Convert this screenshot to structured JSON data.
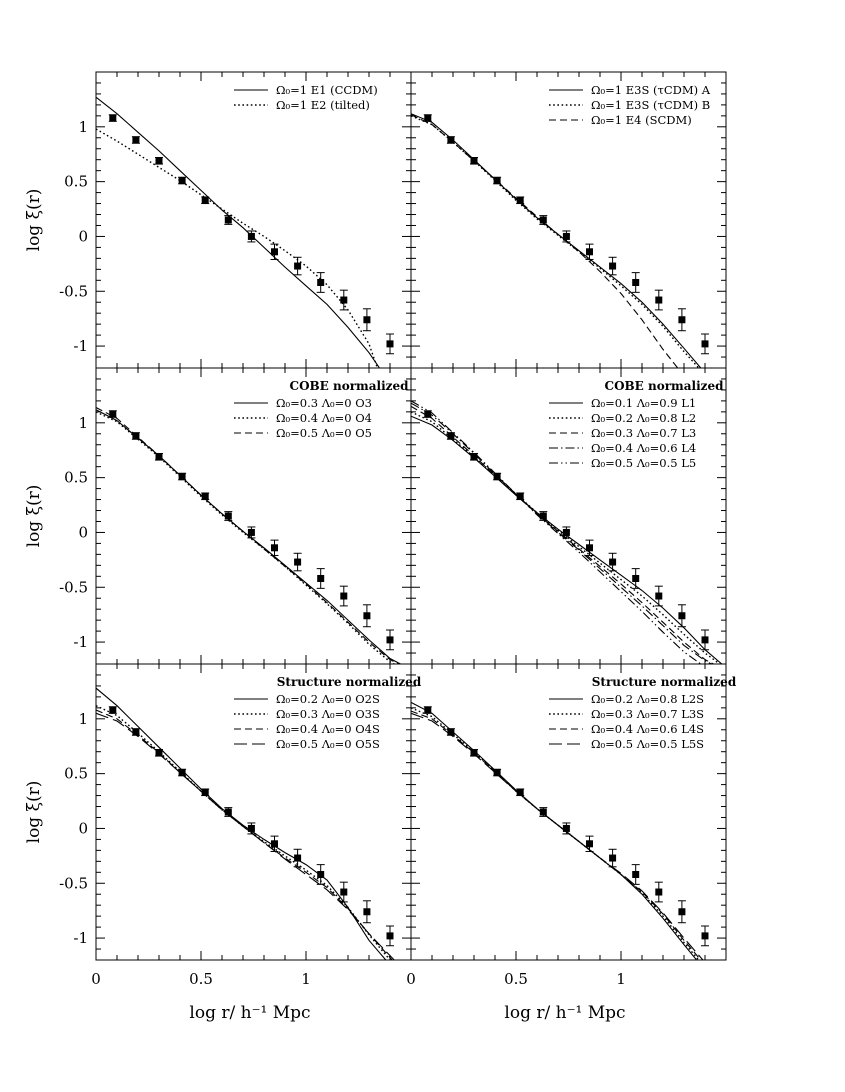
{
  "figure": {
    "x_tick_labels": [
      "0",
      "0.5",
      "1"
    ],
    "y_tick_labels": [
      "1",
      "0.5",
      "0",
      "-0.5",
      "-1"
    ],
    "x_axis_title": "log r/ h⁻¹ Mpc",
    "y_axis_title": "log ξ(r)"
  },
  "observed_points": {
    "x": [
      0.08,
      0.19,
      0.3,
      0.41,
      0.52,
      0.63,
      0.74,
      0.85,
      0.96,
      1.07,
      1.18,
      1.29,
      1.4
    ],
    "y": [
      1.08,
      0.88,
      0.69,
      0.51,
      0.33,
      0.15,
      0.0,
      -0.14,
      -0.27,
      -0.42,
      -0.58,
      -0.76,
      -0.98
    ],
    "err": [
      0.03,
      0.03,
      0.03,
      0.03,
      0.03,
      0.04,
      0.05,
      0.07,
      0.08,
      0.09,
      0.09,
      0.1,
      0.09
    ]
  },
  "chart_data": [
    {
      "type": "line",
      "panel": "top-left",
      "heading": "",
      "legend": [
        "Ω₀=1 E1 (CCDM)",
        "Ω₀=1 E2 (tilted)"
      ],
      "series": [
        {
          "style": "solid",
          "x": [
            0,
            0.1,
            0.2,
            0.3,
            0.4,
            0.5,
            0.6,
            0.7,
            0.8,
            0.9,
            1.0,
            1.1,
            1.2,
            1.3,
            1.35
          ],
          "y": [
            1.27,
            1.12,
            0.95,
            0.78,
            0.6,
            0.42,
            0.24,
            0.08,
            -0.1,
            -0.28,
            -0.45,
            -0.62,
            -0.83,
            -1.06,
            -1.2
          ]
        },
        {
          "style": "dotted",
          "x": [
            0,
            0.1,
            0.2,
            0.3,
            0.4,
            0.5,
            0.6,
            0.7,
            0.8,
            0.9,
            1.0,
            1.1,
            1.2,
            1.3,
            1.34
          ],
          "y": [
            0.98,
            0.87,
            0.75,
            0.63,
            0.51,
            0.38,
            0.25,
            0.12,
            0.0,
            -0.13,
            -0.27,
            -0.44,
            -0.67,
            -0.98,
            -1.2
          ]
        }
      ]
    },
    {
      "type": "line",
      "panel": "top-right",
      "heading": "",
      "legend": [
        "Ω₀=1 E3S (τCDM) A",
        "Ω₀=1 E3S (τCDM) B",
        "Ω₀=1 E4  (SCDM)"
      ],
      "series": [
        {
          "style": "solid",
          "x": [
            0,
            0.1,
            0.2,
            0.3,
            0.4,
            0.5,
            0.6,
            0.7,
            0.8,
            0.9,
            1.0,
            1.1,
            1.2,
            1.3,
            1.38
          ],
          "y": [
            1.12,
            1.04,
            0.88,
            0.7,
            0.52,
            0.34,
            0.17,
            0.02,
            -0.13,
            -0.28,
            -0.43,
            -0.6,
            -0.8,
            -1.02,
            -1.2
          ]
        },
        {
          "style": "dotted",
          "x": [
            0,
            0.1,
            0.2,
            0.3,
            0.4,
            0.5,
            0.6,
            0.7,
            0.8,
            0.9,
            1.0,
            1.1,
            1.2,
            1.3,
            1.37
          ],
          "y": [
            1.1,
            1.02,
            0.86,
            0.69,
            0.51,
            0.33,
            0.16,
            0.01,
            -0.14,
            -0.29,
            -0.45,
            -0.62,
            -0.82,
            -1.05,
            -1.2
          ]
        },
        {
          "style": "dashed",
          "x": [
            0,
            0.1,
            0.2,
            0.3,
            0.4,
            0.5,
            0.6,
            0.7,
            0.8,
            0.9,
            1.0,
            1.1,
            1.2,
            1.27
          ],
          "y": [
            1.11,
            1.02,
            0.86,
            0.69,
            0.52,
            0.35,
            0.18,
            0.02,
            -0.14,
            -0.32,
            -0.52,
            -0.76,
            -1.03,
            -1.2
          ]
        }
      ]
    },
    {
      "type": "line",
      "panel": "middle-left",
      "heading": "COBE normalized",
      "legend": [
        "Ω₀=0.3 Λ₀=0 O3",
        "Ω₀=0.4 Λ₀=0 O4",
        "Ω₀=0.5 Λ₀=0 O5"
      ],
      "series": [
        {
          "style": "solid",
          "x": [
            0,
            0.1,
            0.2,
            0.3,
            0.4,
            0.5,
            0.6,
            0.7,
            0.8,
            0.9,
            1.0,
            1.1,
            1.2,
            1.3,
            1.4,
            1.45
          ],
          "y": [
            1.12,
            1.02,
            0.86,
            0.7,
            0.52,
            0.34,
            0.17,
            0.01,
            -0.14,
            -0.3,
            -0.46,
            -0.62,
            -0.8,
            -0.98,
            -1.15,
            -1.2
          ]
        },
        {
          "style": "dotted",
          "x": [
            0,
            0.1,
            0.2,
            0.3,
            0.4,
            0.5,
            0.6,
            0.7,
            0.8,
            0.9,
            1.0,
            1.1,
            1.2,
            1.3,
            1.4,
            1.42
          ],
          "y": [
            1.1,
            1.01,
            0.85,
            0.69,
            0.51,
            0.33,
            0.16,
            0.0,
            -0.15,
            -0.31,
            -0.48,
            -0.65,
            -0.83,
            -1.02,
            -1.18,
            -1.2
          ]
        },
        {
          "style": "dashed",
          "x": [
            0,
            0.1,
            0.2,
            0.3,
            0.4,
            0.5,
            0.6,
            0.7,
            0.8,
            0.9,
            1.0,
            1.1,
            1.2,
            1.3,
            1.4,
            1.44
          ],
          "y": [
            1.14,
            1.04,
            0.87,
            0.7,
            0.52,
            0.34,
            0.17,
            0.01,
            -0.15,
            -0.31,
            -0.47,
            -0.64,
            -0.82,
            -1.0,
            -1.16,
            -1.2
          ]
        }
      ]
    },
    {
      "type": "line",
      "panel": "middle-right",
      "heading": "COBE normalized",
      "legend": [
        "Ω₀=0.1 Λ₀=0.9 L1",
        "Ω₀=0.2 Λ₀=0.8 L2",
        "Ω₀=0.3 Λ₀=0.7 L3",
        "Ω₀=0.4 Λ₀=0.6 L4",
        "Ω₀=0.5 Λ₀=0.5 L5"
      ],
      "series": [
        {
          "style": "solid",
          "x": [
            0,
            0.1,
            0.2,
            0.3,
            0.4,
            0.5,
            0.6,
            0.7,
            0.8,
            0.9,
            1.0,
            1.1,
            1.2,
            1.3,
            1.4,
            1.48
          ],
          "y": [
            1.06,
            0.98,
            0.84,
            0.68,
            0.51,
            0.34,
            0.18,
            0.03,
            -0.11,
            -0.25,
            -0.39,
            -0.53,
            -0.69,
            -0.87,
            -1.07,
            -1.2
          ]
        },
        {
          "style": "dotted",
          "x": [
            0,
            0.1,
            0.2,
            0.3,
            0.4,
            0.5,
            0.6,
            0.7,
            0.8,
            0.9,
            1.0,
            1.1,
            1.2,
            1.3,
            1.4,
            1.47
          ],
          "y": [
            1.1,
            1.01,
            0.85,
            0.69,
            0.52,
            0.35,
            0.18,
            0.02,
            -0.13,
            -0.28,
            -0.43,
            -0.58,
            -0.75,
            -0.93,
            -1.1,
            -1.2
          ]
        },
        {
          "style": "dashed",
          "x": [
            0,
            0.1,
            0.2,
            0.3,
            0.4,
            0.5,
            0.6,
            0.7,
            0.8,
            0.9,
            1.0,
            1.1,
            1.2,
            1.3,
            1.4,
            1.44
          ],
          "y": [
            1.15,
            1.04,
            0.87,
            0.7,
            0.52,
            0.34,
            0.17,
            0.01,
            -0.15,
            -0.31,
            -0.47,
            -0.64,
            -0.82,
            -1.0,
            -1.16,
            -1.2
          ]
        },
        {
          "style": "dotdash",
          "x": [
            0,
            0.1,
            0.2,
            0.3,
            0.4,
            0.5,
            0.6,
            0.7,
            0.8,
            0.9,
            1.0,
            1.1,
            1.2,
            1.3,
            1.4,
            1.43
          ],
          "y": [
            1.18,
            1.07,
            0.9,
            0.72,
            0.53,
            0.35,
            0.17,
            0.0,
            -0.16,
            -0.33,
            -0.5,
            -0.67,
            -0.85,
            -1.03,
            -1.17,
            -1.2
          ]
        },
        {
          "style": "dashdotdot",
          "x": [
            0,
            0.1,
            0.2,
            0.3,
            0.4,
            0.5,
            0.6,
            0.7,
            0.8,
            0.9,
            1.0,
            1.1,
            1.2,
            1.3,
            1.38
          ],
          "y": [
            1.2,
            1.09,
            0.91,
            0.73,
            0.54,
            0.35,
            0.16,
            -0.01,
            -0.18,
            -0.36,
            -0.54,
            -0.72,
            -0.91,
            -1.09,
            -1.2
          ]
        }
      ]
    },
    {
      "type": "line",
      "panel": "bottom-left",
      "heading": "Structure normalized",
      "legend": [
        "Ω₀=0.2 Λ₀=0 O2S",
        "Ω₀=0.3 Λ₀=0 O3S",
        "Ω₀=0.4 Λ₀=0 O4S",
        "Ω₀=0.5 Λ₀=0 O5S"
      ],
      "series": [
        {
          "style": "solid",
          "x": [
            0,
            0.1,
            0.2,
            0.3,
            0.4,
            0.5,
            0.6,
            0.7,
            0.8,
            0.9,
            1.0,
            1.1,
            1.2,
            1.3,
            1.38
          ],
          "y": [
            1.28,
            1.12,
            0.93,
            0.74,
            0.55,
            0.36,
            0.18,
            0.03,
            -0.1,
            -0.22,
            -0.33,
            -0.47,
            -0.72,
            -1.02,
            -1.2
          ]
        },
        {
          "style": "dotted",
          "x": [
            0,
            0.1,
            0.2,
            0.3,
            0.4,
            0.5,
            0.6,
            0.7,
            0.8,
            0.9,
            1.0,
            1.1,
            1.2,
            1.3,
            1.4
          ],
          "y": [
            1.12,
            1.03,
            0.87,
            0.7,
            0.52,
            0.34,
            0.17,
            0.02,
            -0.12,
            -0.25,
            -0.38,
            -0.52,
            -0.72,
            -0.97,
            -1.2
          ]
        },
        {
          "style": "dashed",
          "x": [
            0,
            0.1,
            0.2,
            0.3,
            0.4,
            0.5,
            0.6,
            0.7,
            0.8,
            0.9,
            1.0,
            1.1,
            1.2,
            1.3,
            1.41
          ],
          "y": [
            1.08,
            1.0,
            0.85,
            0.69,
            0.51,
            0.34,
            0.17,
            0.02,
            -0.13,
            -0.27,
            -0.4,
            -0.54,
            -0.73,
            -0.96,
            -1.2
          ]
        },
        {
          "style": "longdash",
          "x": [
            0,
            0.1,
            0.2,
            0.3,
            0.4,
            0.5,
            0.6,
            0.7,
            0.8,
            0.9,
            1.0,
            1.1,
            1.2,
            1.3,
            1.42
          ],
          "y": [
            1.05,
            0.98,
            0.84,
            0.68,
            0.51,
            0.34,
            0.17,
            0.02,
            -0.13,
            -0.28,
            -0.42,
            -0.56,
            -0.74,
            -0.96,
            -1.2
          ]
        }
      ]
    },
    {
      "type": "line",
      "panel": "bottom-right",
      "heading": "Structure normalized",
      "legend": [
        "Ω₀=0.2 Λ₀=0.8 L2S",
        "Ω₀=0.3 Λ₀=0.7 L3S",
        "Ω₀=0.4 Λ₀=0.6 L4S",
        "Ω₀=0.5 Λ₀=0.5 L5S"
      ],
      "series": [
        {
          "style": "solid",
          "x": [
            0,
            0.1,
            0.2,
            0.3,
            0.4,
            0.5,
            0.6,
            0.7,
            0.8,
            0.9,
            1.0,
            1.1,
            1.2,
            1.3,
            1.36
          ],
          "y": [
            1.15,
            1.05,
            0.88,
            0.71,
            0.53,
            0.35,
            0.18,
            0.03,
            -0.12,
            -0.27,
            -0.42,
            -0.6,
            -0.82,
            -1.06,
            -1.2
          ]
        },
        {
          "style": "dotted",
          "x": [
            0,
            0.1,
            0.2,
            0.3,
            0.4,
            0.5,
            0.6,
            0.7,
            0.8,
            0.9,
            1.0,
            1.1,
            1.2,
            1.3,
            1.37
          ],
          "y": [
            1.1,
            1.02,
            0.86,
            0.7,
            0.52,
            0.34,
            0.18,
            0.03,
            -0.12,
            -0.27,
            -0.42,
            -0.59,
            -0.8,
            -1.04,
            -1.2
          ]
        },
        {
          "style": "dashed",
          "x": [
            0,
            0.1,
            0.2,
            0.3,
            0.4,
            0.5,
            0.6,
            0.7,
            0.8,
            0.9,
            1.0,
            1.1,
            1.2,
            1.3,
            1.38
          ],
          "y": [
            1.07,
            1.0,
            0.85,
            0.69,
            0.52,
            0.34,
            0.18,
            0.03,
            -0.12,
            -0.27,
            -0.42,
            -0.58,
            -0.78,
            -1.02,
            -1.2
          ]
        },
        {
          "style": "longdash",
          "x": [
            0,
            0.1,
            0.2,
            0.3,
            0.4,
            0.5,
            0.6,
            0.7,
            0.8,
            0.9,
            1.0,
            1.1,
            1.2,
            1.3,
            1.39
          ],
          "y": [
            1.05,
            0.98,
            0.84,
            0.68,
            0.51,
            0.34,
            0.18,
            0.03,
            -0.12,
            -0.27,
            -0.41,
            -0.57,
            -0.77,
            -1.0,
            -1.2
          ]
        }
      ]
    }
  ]
}
